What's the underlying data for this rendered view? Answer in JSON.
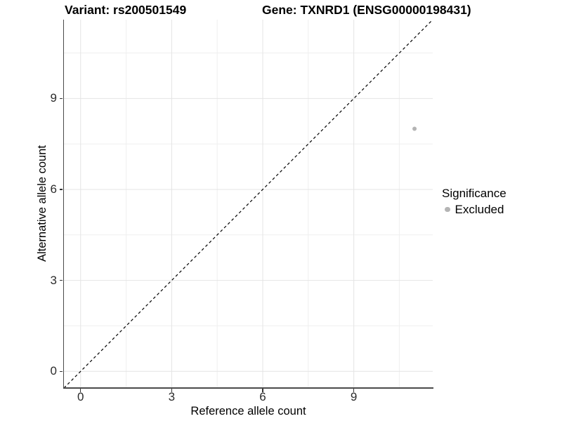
{
  "titles": {
    "left": "Variant: rs200501549",
    "right": "Gene: TXNRD1 (ENSG00000198431)"
  },
  "axes": {
    "x": {
      "label": "Reference allele count"
    },
    "y": {
      "label": "Alternative allele count"
    }
  },
  "legend": {
    "title": "Significance",
    "position": "right",
    "items": [
      {
        "label": "Excluded",
        "marker": "circle-icon",
        "color": "#b4b4b4"
      }
    ]
  },
  "chart_data": {
    "type": "scatter",
    "title": "Variant: rs200501549 | Gene: TXNRD1 (ENSG00000198431)",
    "xlabel": "Reference allele count",
    "ylabel": "Alternative allele count",
    "xlim": [
      -0.55,
      11.6
    ],
    "ylim": [
      -0.55,
      11.6
    ],
    "x_major_ticks": [
      0,
      3,
      6,
      9
    ],
    "x_tick_labels": [
      "0",
      "3",
      "6",
      "9"
    ],
    "y_major_ticks": [
      0,
      3,
      6,
      9
    ],
    "y_tick_labels": [
      "0",
      "3",
      "6",
      "9"
    ],
    "minor_gridlines": [
      1.5,
      4.5,
      7.5,
      10.5
    ],
    "grid": "major and minor, light gray on white",
    "reference_line": {
      "type": "identity y=x",
      "style": "dashed",
      "color": "#000000"
    },
    "series": [
      {
        "name": "Excluded",
        "color": "#b4b4b4",
        "points": [
          {
            "x": 11,
            "y": 8
          }
        ]
      }
    ],
    "legend": {
      "title": "Significance",
      "entries": [
        "Excluded"
      ],
      "position": "right"
    },
    "colors": {
      "point": "#b4b4b4",
      "grid_major": "#e4e4e4",
      "grid_minor": "#efefef",
      "axis_line": "#4a4a4a",
      "tick_mark": "#333333",
      "tick_text": "#2b2b2b"
    }
  }
}
